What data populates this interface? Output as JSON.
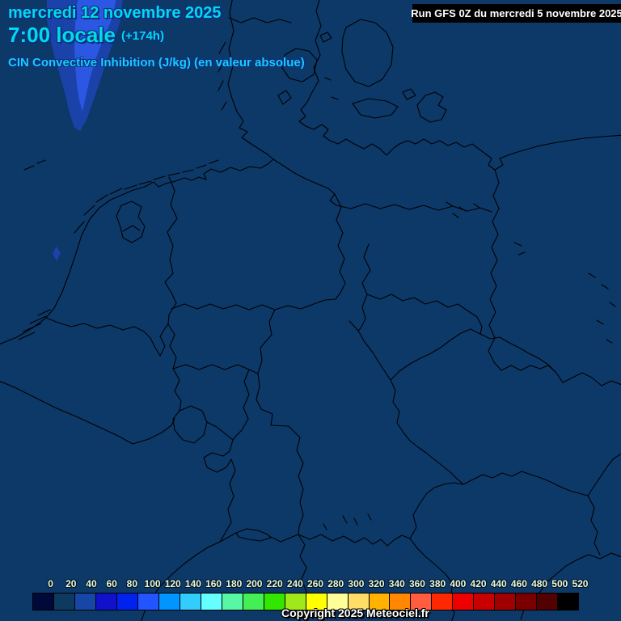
{
  "header": {
    "date": "mercredi 12 novembre 2025",
    "time": "7:00 locale",
    "forecast_offset": "(+174h)",
    "product_title": "CIN Convective Inhibition (J/kg) (en valeur absolue)"
  },
  "run_info": {
    "label": "Run GFS 0Z du mercredi 5 novembre 2025"
  },
  "footer": {
    "copyright": "Copyright 2025 Meteociel.fr"
  },
  "colorbar": {
    "unit": "J/kg",
    "labels": [
      "0",
      "20",
      "40",
      "60",
      "80",
      "100",
      "120",
      "140",
      "160",
      "180",
      "200",
      "220",
      "240",
      "260",
      "280",
      "300",
      "320",
      "340",
      "360",
      "380",
      "400",
      "420",
      "440",
      "460",
      "480",
      "500",
      "520"
    ],
    "colors": [
      "#01083a",
      "#0d3a5e",
      "#1747a6",
      "#1111cc",
      "#0022ee",
      "#2255ff",
      "#0095ff",
      "#33ccff",
      "#66ffff",
      "#58f7a6",
      "#44ee55",
      "#33e600",
      "#a0e81a",
      "#ffff00",
      "#ffff99",
      "#ffdd66",
      "#ffb300",
      "#ff8800",
      "#ff5c40",
      "#ff2800",
      "#ee0000",
      "#c80000",
      "#a00000",
      "#7a0000",
      "#520000",
      "#000000"
    ]
  },
  "map": {
    "background_color": "#0d3968",
    "border_color": "#000000",
    "cin_region_low_color": "#1a42a8",
    "cin_region_mid_color": "#2b57e2"
  },
  "text_colors": {
    "header_cyan": "#00dce2",
    "scale_label": "#e8fbd2"
  }
}
